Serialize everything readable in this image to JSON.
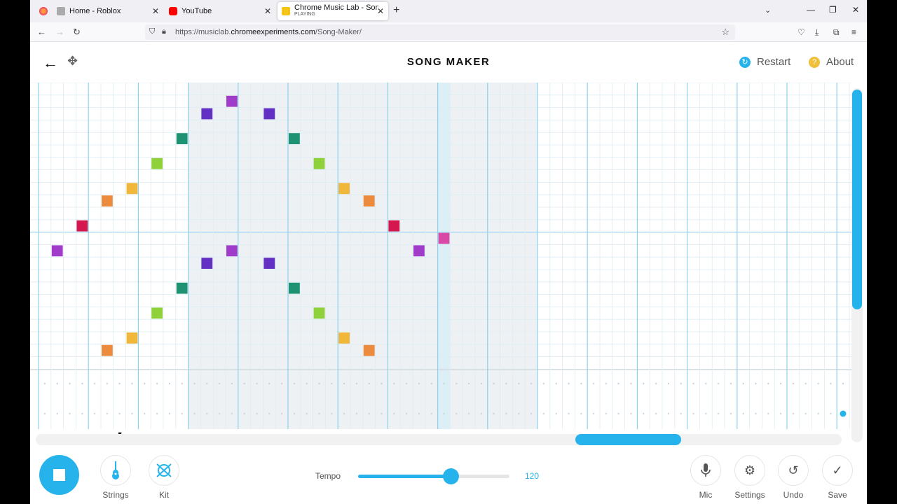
{
  "browser": {
    "tabs": [
      {
        "title": "Home - Roblox",
        "favicon": "roblox-icon"
      },
      {
        "title": "YouTube",
        "favicon": "youtube-icon"
      },
      {
        "title": "Chrome Music Lab - Song Mak",
        "subtitle": "PLAYING",
        "favicon": "music-lab-icon",
        "active": true
      }
    ],
    "url": {
      "prefix": "https://musiclab.",
      "domain": "chromeexperiments.com",
      "path": "/Song-Maker/"
    }
  },
  "app": {
    "title": "SONG MAKER",
    "restart_label": "Restart",
    "about_label": "About",
    "accent": "#26b3ec"
  },
  "grid": {
    "notes": [
      {
        "col": 1,
        "row": 13,
        "color": "#a03cc9"
      },
      {
        "col": 3,
        "row": 11,
        "color": "#d4184f"
      },
      {
        "col": 5,
        "row": 9,
        "color": "#ec8b3d"
      },
      {
        "col": 7,
        "row": 8,
        "color": "#f0b73a"
      },
      {
        "col": 9,
        "row": 6,
        "color": "#8ed13b"
      },
      {
        "col": 11,
        "row": 4,
        "color": "#1e9273"
      },
      {
        "col": 13,
        "row": 2,
        "color": "#6330c4"
      },
      {
        "col": 15,
        "row": 1,
        "color": "#a03cc9"
      },
      {
        "col": 18,
        "row": 2,
        "color": "#6330c4"
      },
      {
        "col": 20,
        "row": 4,
        "color": "#1e9273"
      },
      {
        "col": 22,
        "row": 6,
        "color": "#8ed13b"
      },
      {
        "col": 24,
        "row": 8,
        "color": "#f0b73a"
      },
      {
        "col": 26,
        "row": 9,
        "color": "#ec8b3d"
      },
      {
        "col": 28,
        "row": 11,
        "color": "#d4184f"
      },
      {
        "col": 30,
        "row": 13,
        "color": "#a03cc9"
      },
      {
        "col": 32,
        "row": 12,
        "color": "#d94aa6"
      },
      {
        "col": 15,
        "row": 13,
        "color": "#a03cc9"
      },
      {
        "col": 13,
        "row": 14,
        "color": "#6330c4"
      },
      {
        "col": 18,
        "row": 14,
        "color": "#6330c4"
      },
      {
        "col": 11,
        "row": 16,
        "color": "#1e9273"
      },
      {
        "col": 20,
        "row": 16,
        "color": "#1e9273"
      },
      {
        "col": 9,
        "row": 18,
        "color": "#8ed13b"
      },
      {
        "col": 22,
        "row": 18,
        "color": "#8ed13b"
      },
      {
        "col": 7,
        "row": 20,
        "color": "#f0b73a"
      },
      {
        "col": 24,
        "row": 20,
        "color": "#f0b73a"
      },
      {
        "col": 5,
        "row": 21,
        "color": "#ec8b3d"
      },
      {
        "col": 26,
        "row": 21,
        "color": "#ec8b3d"
      }
    ]
  },
  "controls": {
    "strings_label": "Strings",
    "kit_label": "Kit",
    "tempo_label": "Tempo",
    "tempo_value": "120",
    "tempo_fraction": 0.61,
    "mic_label": "Mic",
    "settings_label": "Settings",
    "undo_label": "Undo",
    "save_label": "Save"
  }
}
